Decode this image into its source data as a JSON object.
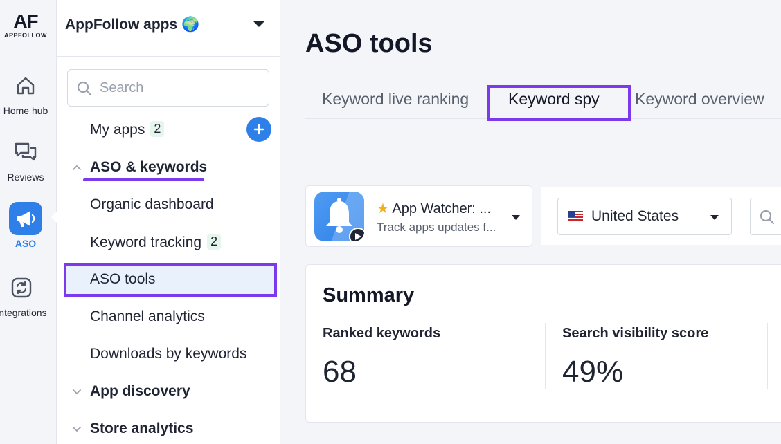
{
  "rail": {
    "logo_mark": "AF",
    "logo_text": "APPFOLLOW",
    "items": [
      {
        "label": "Home hub",
        "icon": "home-icon"
      },
      {
        "label": "Reviews",
        "icon": "chat-icon"
      },
      {
        "label": "ASO",
        "icon": "megaphone-icon",
        "active": true
      },
      {
        "label": "Integrations",
        "icon": "sync-icon"
      }
    ]
  },
  "sidebar": {
    "workspace_title": "AppFollow apps 🌍",
    "search_placeholder": "Search",
    "my_apps": {
      "label": "My apps",
      "count": "2"
    },
    "aso_group": "ASO & keywords",
    "items": [
      {
        "label": "Organic dashboard"
      },
      {
        "label": "Keyword tracking",
        "count": "2"
      },
      {
        "label": "ASO tools",
        "active": true
      },
      {
        "label": "Channel analytics"
      },
      {
        "label": "Downloads by keywords"
      }
    ],
    "groups": [
      "App discovery",
      "Store analytics"
    ]
  },
  "main": {
    "title": "ASO tools",
    "tabs": [
      {
        "label": "Keyword live ranking"
      },
      {
        "label": "Keyword spy",
        "active": true
      },
      {
        "label": "Keyword overview"
      }
    ],
    "app_selector": {
      "name": "App Watcher: ...",
      "subtitle": "Track apps updates f..."
    },
    "country": {
      "flag": "us-flag",
      "name": "United States"
    },
    "summary": {
      "title": "Summary",
      "metrics": [
        {
          "label": "Ranked keywords",
          "value": "68"
        },
        {
          "label": "Search visibility score",
          "value": "49%"
        }
      ]
    }
  },
  "colors": {
    "accent": "#2e7fe8",
    "highlight": "#7c3aed"
  }
}
